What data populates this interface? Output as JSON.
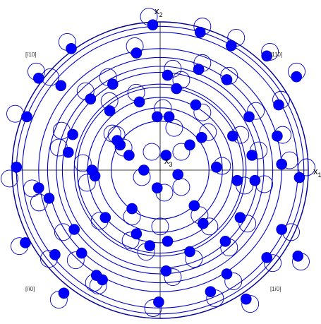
{
  "colors": {
    "circle": "#000000",
    "trace": "#0000c8",
    "spot": "#0000ff",
    "axis": "#000000"
  },
  "axes": {
    "x1": {
      "base": "x",
      "sub": "1"
    },
    "x2": {
      "base": "x",
      "sub": "2"
    },
    "x3": {
      "base": "x",
      "sub": "3"
    }
  },
  "directions": {
    "upper_left": "[ī10]",
    "upper_right": "[110]",
    "lower_left": "[īī0]",
    "lower_right": "[1ī0]"
  },
  "chart_data": {
    "type": "scatter",
    "description_series": [
      "filled spots",
      "open spots",
      "traces"
    ],
    "radius_max": 1.0,
    "trace_radii": [
      0.33,
      0.42,
      0.49,
      0.56,
      0.58,
      0.66,
      0.7,
      0.76,
      0.82,
      0.93,
      0.97,
      1.0
    ],
    "filled_spots": [
      [
        0.04,
        0.1
      ],
      [
        0.12,
        -0.03
      ],
      [
        -0.02,
        -0.12
      ],
      [
        -0.11,
        0.0
      ],
      [
        0.2,
        0.17
      ],
      [
        -0.27,
        0.17
      ],
      [
        -0.19,
        -0.26
      ],
      [
        0.23,
        -0.24
      ],
      [
        0.24,
        0.44
      ],
      [
        -0.34,
        0.4
      ],
      [
        -0.02,
        0.36
      ],
      [
        -0.44,
        -0.04
      ],
      [
        -0.37,
        -0.32
      ],
      [
        0.38,
        0.02
      ],
      [
        0.29,
        -0.36
      ],
      [
        -0.07,
        -0.51
      ],
      [
        0.49,
        0.23
      ],
      [
        -0.59,
        0.24
      ],
      [
        -0.32,
        0.58
      ],
      [
        0.11,
        0.55
      ],
      [
        0.54,
        -0.32
      ],
      [
        -0.58,
        -0.4
      ],
      [
        0.04,
        -0.68
      ],
      [
        0.64,
        -0.07
      ],
      [
        0.45,
        0.61
      ],
      [
        -0.67,
        0.57
      ],
      [
        -0.16,
        0.79
      ],
      [
        0.79,
        0.23
      ],
      [
        -0.71,
        -0.57
      ],
      [
        -0.39,
        -0.74
      ],
      [
        0.45,
        -0.7
      ],
      [
        0.82,
        -0.4
      ],
      [
        0.27,
        0.93
      ],
      [
        -0.9,
        0.36
      ],
      [
        0.94,
        -0.05
      ],
      [
        -0.65,
        -0.83
      ],
      [
        -0.01,
        -0.89
      ],
      [
        0.58,
        -0.87
      ],
      [
        0.92,
        0.63
      ],
      [
        -0.97,
        0.02
      ],
      [
        0.72,
        0.77
      ],
      [
        -0.47,
        0.48
      ],
      [
        0.06,
        0.36
      ],
      [
        0.44,
        -0.48
      ],
      [
        -0.46,
        0.0
      ],
      [
        -0.16,
        -0.43
      ],
      [
        0.8,
        0.44
      ],
      [
        -0.82,
        0.62
      ],
      [
        0.2,
        -0.55
      ],
      [
        0.62,
        0.1
      ],
      [
        -0.29,
        0.2
      ],
      [
        -0.75,
        -0.19
      ],
      [
        0.26,
        0.68
      ],
      [
        -0.05,
        0.98
      ],
      [
        0.93,
        -0.58
      ],
      [
        -0.53,
        -0.56
      ],
      [
        0.05,
        -0.48
      ],
      [
        -0.82,
        -0.12
      ],
      [
        0.28,
        0.22
      ],
      [
        0.52,
        -0.07
      ],
      [
        -0.43,
        -0.71
      ],
      [
        0.72,
        -0.59
      ],
      [
        -0.62,
        0.12
      ],
      [
        0.05,
        0.64
      ],
      [
        -0.6,
        0.82
      ],
      [
        0.34,
        -0.82
      ],
      [
        0.82,
        0.04
      ],
      [
        -0.21,
        0.1
      ],
      [
        0.48,
        0.84
      ],
      [
        -0.91,
        -0.49
      ],
      [
        -0.14,
        0.46
      ],
      [
        0.6,
        0.36
      ]
    ],
    "open_spots": [
      [
        0.15,
        0.13
      ],
      [
        -0.06,
        0.13
      ],
      [
        -0.13,
        -0.05
      ],
      [
        0.03,
        -0.16
      ],
      [
        0.15,
        -0.12
      ],
      [
        -0.31,
        0.25
      ],
      [
        -0.2,
        -0.33
      ],
      [
        0.28,
        -0.32
      ],
      [
        0.3,
        0.41
      ],
      [
        -0.36,
        0.49
      ],
      [
        0.02,
        0.44
      ],
      [
        -0.52,
        -0.09
      ],
      [
        -0.43,
        -0.36
      ],
      [
        0.44,
        0.03
      ],
      [
        0.35,
        -0.4
      ],
      [
        -0.1,
        -0.58
      ],
      [
        0.57,
        0.25
      ],
      [
        -0.7,
        0.28
      ],
      [
        -0.37,
        0.66
      ],
      [
        0.15,
        0.64
      ],
      [
        0.62,
        -0.38
      ],
      [
        -0.69,
        -0.44
      ],
      [
        0.09,
        -0.76
      ],
      [
        0.74,
        -0.1
      ],
      [
        0.49,
        0.67
      ],
      [
        -0.78,
        0.66
      ],
      [
        -0.18,
        0.88
      ],
      [
        0.87,
        0.25
      ],
      [
        -0.79,
        -0.63
      ],
      [
        -0.44,
        -0.82
      ],
      [
        0.52,
        -0.79
      ],
      [
        0.93,
        -0.44
      ],
      [
        0.3,
        1.02
      ],
      [
        -1.03,
        0.4
      ],
      [
        1.04,
        0.02
      ],
      [
        -0.72,
        -0.92
      ],
      [
        -0.05,
        -0.98
      ],
      [
        0.64,
        -0.95
      ],
      [
        0.97,
        0.7
      ],
      [
        -1.07,
        -0.06
      ],
      [
        0.78,
        0.84
      ],
      [
        -0.53,
        0.56
      ],
      [
        0.1,
        0.3
      ],
      [
        0.49,
        -0.55
      ],
      [
        -0.55,
        0.05
      ],
      [
        -0.21,
        -0.5
      ],
      [
        0.86,
        0.5
      ],
      [
        -0.88,
        0.7
      ],
      [
        0.24,
        -0.63
      ],
      [
        0.7,
        0.14
      ],
      [
        -0.34,
        0.26
      ],
      [
        -0.86,
        -0.23
      ],
      [
        0.3,
        0.76
      ],
      [
        -0.08,
        1.09
      ],
      [
        1.0,
        -0.65
      ],
      [
        -0.6,
        -0.64
      ],
      [
        0.0,
        -0.4
      ],
      [
        -0.91,
        -0.13
      ],
      [
        0.34,
        0.27
      ],
      [
        0.6,
        -0.11
      ],
      [
        -0.47,
        -0.8
      ],
      [
        0.8,
        -0.66
      ],
      [
        -0.72,
        0.16
      ],
      [
        0.09,
        0.72
      ],
      [
        -0.66,
        0.91
      ],
      [
        0.39,
        -0.91
      ],
      [
        0.92,
        0.07
      ],
      [
        -0.26,
        0.16
      ],
      [
        0.54,
        0.94
      ],
      [
        -1.0,
        -0.54
      ],
      [
        -0.17,
        0.55
      ],
      [
        0.68,
        0.42
      ]
    ]
  }
}
